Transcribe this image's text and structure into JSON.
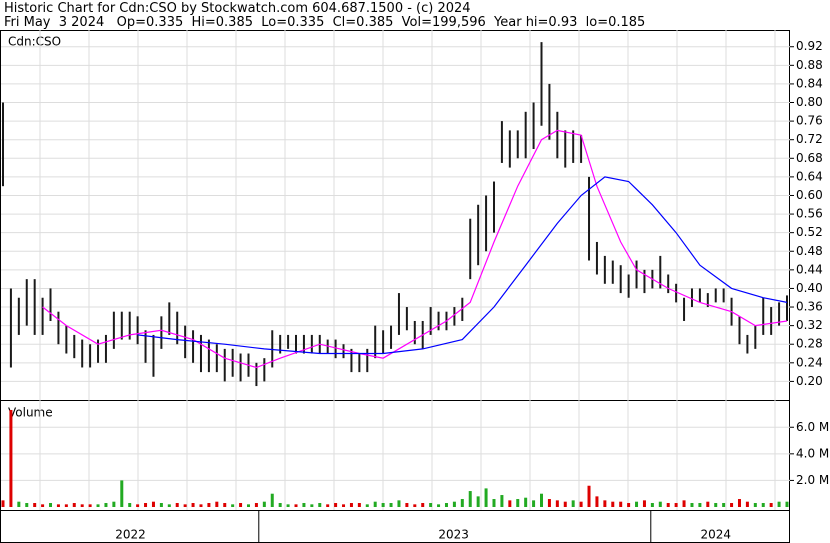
{
  "chart_data": {
    "type": "ohlc",
    "title": "Historic Chart for Cdn:CSO by Stockwatch.com 604.687.1500 - (c) 2024",
    "subtitle": "Fri May  3 2024   Op=0.335  Hi=0.385  Lo=0.335  Cl=0.385  Vol=199,596  Year hi=0.93  lo=0.185",
    "symbol": "Cdn:CSO",
    "volume_label": "Volume",
    "xticks": [
      {
        "value": 16.1,
        "label": "2022"
      },
      {
        "value": 56.9,
        "label": "2023"
      },
      {
        "value": 90,
        "label": "2024"
      }
    ],
    "year_dividers": [
      32.3,
      81.8
    ],
    "high": [
      0.8,
      0.4,
      0.38,
      0.42,
      0.42,
      0.38,
      0.4,
      0.35,
      0.32,
      0.3,
      0.29,
      0.28,
      0.29,
      0.3,
      0.35,
      0.35,
      0.35,
      0.34,
      0.31,
      0.3,
      0.34,
      0.37,
      0.35,
      0.32,
      0.31,
      0.3,
      0.29,
      0.28,
      0.27,
      0.27,
      0.26,
      0.26,
      0.24,
      0.25,
      0.31,
      0.3,
      0.3,
      0.3,
      0.3,
      0.3,
      0.3,
      0.29,
      0.29,
      0.28,
      0.27,
      0.26,
      0.27,
      0.32,
      0.31,
      0.32,
      0.39,
      0.36,
      0.33,
      0.33,
      0.36,
      0.35,
      0.35,
      0.36,
      0.38,
      0.55,
      0.58,
      0.6,
      0.63,
      0.76,
      0.74,
      0.74,
      0.78,
      0.8,
      0.93,
      0.84,
      0.78,
      0.74,
      0.74,
      0.73,
      0.64,
      0.5,
      0.47,
      0.46,
      0.45,
      0.43,
      0.46,
      0.44,
      0.44,
      0.47,
      0.43,
      0.41,
      0.38,
      0.4,
      0.4,
      0.39,
      0.4,
      0.4,
      0.38,
      0.34,
      0.3,
      0.32,
      0.38,
      0.36,
      0.37,
      0.385
    ],
    "low": [
      0.62,
      0.23,
      0.3,
      0.32,
      0.3,
      0.3,
      0.33,
      0.28,
      0.26,
      0.25,
      0.23,
      0.23,
      0.24,
      0.24,
      0.27,
      0.29,
      0.29,
      0.28,
      0.24,
      0.21,
      0.27,
      0.3,
      0.28,
      0.25,
      0.24,
      0.22,
      0.22,
      0.22,
      0.2,
      0.21,
      0.2,
      0.21,
      0.19,
      0.2,
      0.23,
      0.26,
      0.27,
      0.26,
      0.26,
      0.26,
      0.26,
      0.26,
      0.25,
      0.25,
      0.22,
      0.22,
      0.22,
      0.25,
      0.26,
      0.27,
      0.3,
      0.31,
      0.28,
      0.27,
      0.3,
      0.31,
      0.31,
      0.32,
      0.33,
      0.42,
      0.45,
      0.48,
      0.52,
      0.67,
      0.66,
      0.68,
      0.68,
      0.7,
      0.75,
      0.72,
      0.68,
      0.66,
      0.67,
      0.67,
      0.46,
      0.43,
      0.41,
      0.41,
      0.39,
      0.38,
      0.4,
      0.39,
      0.4,
      0.4,
      0.39,
      0.37,
      0.33,
      0.36,
      0.37,
      0.36,
      0.37,
      0.37,
      0.32,
      0.28,
      0.26,
      0.27,
      0.3,
      0.3,
      0.32,
      0.33
    ],
    "bar_color": "#1a1a1a",
    "moving_averages": [
      {
        "color": "#ff00ff",
        "x": [
          5,
          8,
          12,
          16,
          20,
          24,
          28,
          32,
          35,
          40,
          45,
          48,
          51,
          56,
          59,
          62,
          65,
          68,
          70,
          73,
          75,
          78,
          80,
          84,
          88,
          92,
          95,
          99
        ],
        "values": [
          0.36,
          0.32,
          0.28,
          0.3,
          0.31,
          0.29,
          0.25,
          0.23,
          0.25,
          0.28,
          0.26,
          0.25,
          0.28,
          0.33,
          0.37,
          0.5,
          0.62,
          0.72,
          0.74,
          0.73,
          0.62,
          0.5,
          0.44,
          0.4,
          0.37,
          0.35,
          0.32,
          0.33
        ]
      },
      {
        "color": "#0000ff",
        "x": [
          17,
          22,
          28,
          33,
          40,
          48,
          53,
          58,
          62,
          66,
          70,
          73,
          76,
          79,
          82,
          85,
          88,
          92,
          96,
          99
        ],
        "values": [
          0.3,
          0.29,
          0.28,
          0.27,
          0.26,
          0.26,
          0.27,
          0.29,
          0.36,
          0.45,
          0.54,
          0.6,
          0.64,
          0.63,
          0.58,
          0.52,
          0.45,
          0.4,
          0.38,
          0.37
        ]
      }
    ],
    "ylim": [
      0.16,
      0.956
    ],
    "yticks": [
      {
        "value": 0.2,
        "label": "0.20"
      },
      0.24,
      0.28,
      0.32,
      0.36,
      {
        "value": 0.4,
        "label": "0.40"
      },
      0.44,
      0.48,
      0.52,
      0.56,
      {
        "value": 0.6,
        "label": "0.60"
      },
      0.64,
      0.68,
      0.72,
      0.76,
      {
        "value": 0.8,
        "label": "0.80"
      },
      0.84,
      0.88,
      0.92
    ],
    "volume": [
      0.5,
      7.3,
      0.4,
      0.3,
      0.3,
      0.2,
      0.3,
      0.2,
      0.2,
      0.3,
      0.2,
      0.2,
      0.2,
      0.3,
      0.4,
      2.0,
      0.3,
      0.2,
      0.3,
      0.4,
      0.3,
      0.2,
      0.3,
      0.2,
      0.3,
      0.2,
      0.3,
      0.4,
      0.3,
      0.2,
      0.3,
      0.2,
      0.3,
      0.4,
      1.0,
      0.3,
      0.2,
      0.2,
      0.3,
      0.2,
      0.3,
      0.2,
      0.3,
      0.2,
      0.3,
      0.3,
      0.2,
      0.4,
      0.3,
      0.3,
      0.5,
      0.3,
      0.2,
      0.3,
      0.3,
      0.2,
      0.3,
      0.4,
      0.6,
      1.2,
      0.8,
      1.4,
      0.6,
      0.9,
      0.5,
      0.6,
      0.7,
      0.5,
      1.0,
      0.6,
      0.5,
      0.4,
      0.5,
      0.4,
      1.6,
      0.8,
      0.5,
      0.4,
      0.4,
      0.3,
      0.4,
      0.5,
      0.3,
      0.4,
      0.3,
      0.3,
      0.5,
      0.3,
      0.3,
      0.4,
      0.3,
      0.3,
      0.3,
      0.6,
      0.4,
      0.3,
      0.3,
      0.3,
      0.4,
      0.4
    ],
    "volume_up_color": "#22aa22",
    "volume_down_color": "#dd0000",
    "volume_ylim": [
      0,
      7.9
    ],
    "volume_yticks": [
      {
        "value": 2,
        "label": "2.0 M"
      },
      {
        "value": 4,
        "label": "4.0 M"
      },
      {
        "value": 6,
        "label": "6.0 M"
      }
    ],
    "grid": true
  }
}
